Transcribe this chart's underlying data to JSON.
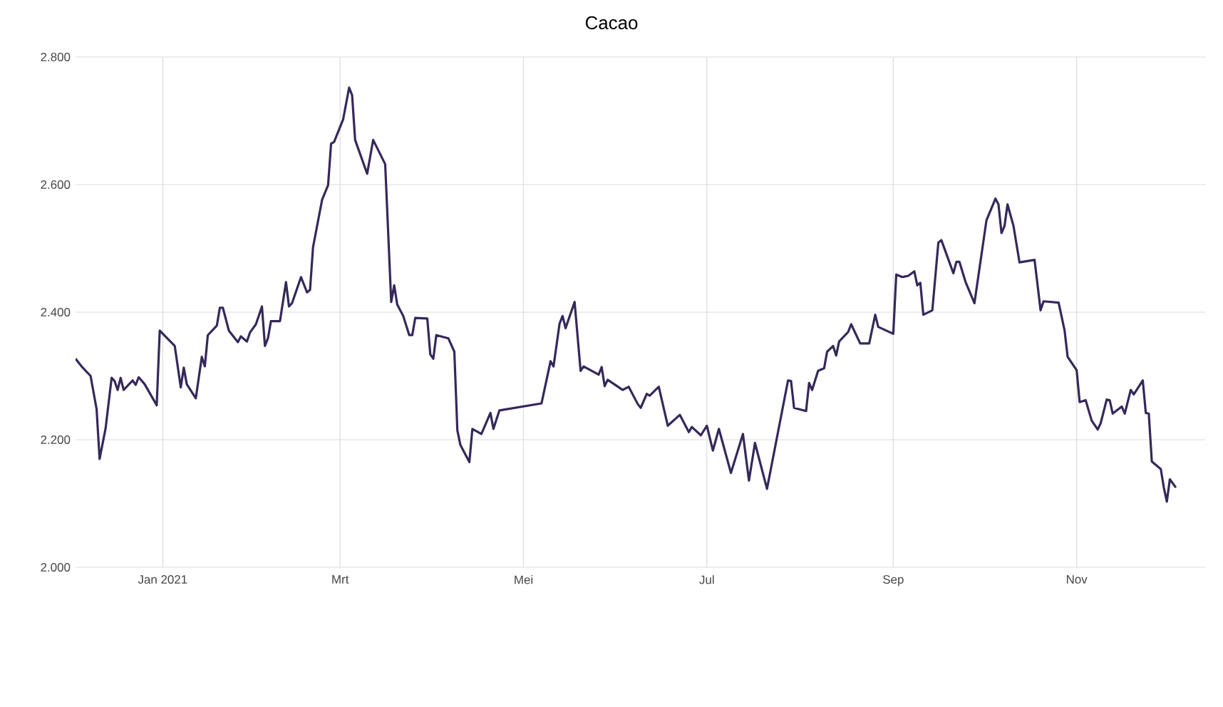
{
  "chart_data": {
    "type": "line",
    "title": "Cacao",
    "x": [
      "2020-12-03",
      "2020-12-05",
      "2020-12-08",
      "2020-12-10",
      "2020-12-11",
      "2020-12-13",
      "2020-12-15",
      "2020-12-16",
      "2020-12-17",
      "2020-12-18",
      "2020-12-19",
      "2020-12-22",
      "2020-12-23",
      "2020-12-24",
      "2020-12-26",
      "2020-12-30",
      "2020-12-31",
      "2021-01-05",
      "2021-01-07",
      "2021-01-08",
      "2021-01-09",
      "2021-01-12",
      "2021-01-14",
      "2021-01-15",
      "2021-01-16",
      "2021-01-19",
      "2021-01-20",
      "2021-01-21",
      "2021-01-23",
      "2021-01-26",
      "2021-01-27",
      "2021-01-29",
      "2021-01-30",
      "2021-02-01",
      "2021-02-03",
      "2021-02-04",
      "2021-02-05",
      "2021-02-06",
      "2021-02-09",
      "2021-02-11",
      "2021-02-12",
      "2021-02-13",
      "2021-02-16",
      "2021-02-18",
      "2021-02-19",
      "2021-02-20",
      "2021-02-23",
      "2021-02-25",
      "2021-02-26",
      "2021-02-27",
      "2021-03-02",
      "2021-03-04",
      "2021-03-05",
      "2021-03-06",
      "2021-03-10",
      "2021-03-12",
      "2021-03-16",
      "2021-03-18",
      "2021-03-19",
      "2021-03-20",
      "2021-03-22",
      "2021-03-24",
      "2021-03-25",
      "2021-03-26",
      "2021-03-30",
      "2021-03-31",
      "2021-04-01",
      "2021-04-02",
      "2021-04-06",
      "2021-04-08",
      "2021-04-09",
      "2021-04-10",
      "2021-04-13",
      "2021-04-14",
      "2021-04-17",
      "2021-04-20",
      "2021-04-21",
      "2021-04-23",
      "2021-05-07",
      "2021-05-10",
      "2021-05-11",
      "2021-05-13",
      "2021-05-14",
      "2021-05-15",
      "2021-05-18",
      "2021-05-20",
      "2021-05-21",
      "2021-05-26",
      "2021-05-27",
      "2021-05-28",
      "2021-05-29",
      "2021-06-03",
      "2021-06-05",
      "2021-06-08",
      "2021-06-09",
      "2021-06-11",
      "2021-06-12",
      "2021-06-15",
      "2021-06-18",
      "2021-06-22",
      "2021-06-25",
      "2021-06-26",
      "2021-06-29",
      "2021-07-01",
      "2021-07-03",
      "2021-07-05",
      "2021-07-09",
      "2021-07-13",
      "2021-07-15",
      "2021-07-17",
      "2021-07-21",
      "2021-07-28",
      "2021-07-29",
      "2021-07-30",
      "2021-08-03",
      "2021-08-04",
      "2021-08-05",
      "2021-08-07",
      "2021-08-09",
      "2021-08-10",
      "2021-08-12",
      "2021-08-13",
      "2021-08-14",
      "2021-08-17",
      "2021-08-18",
      "2021-08-21",
      "2021-08-24",
      "2021-08-26",
      "2021-08-27",
      "2021-09-01",
      "2021-09-02",
      "2021-09-04",
      "2021-09-06",
      "2021-09-08",
      "2021-09-09",
      "2021-09-10",
      "2021-09-11",
      "2021-09-14",
      "2021-09-16",
      "2021-09-17",
      "2021-09-21",
      "2021-09-22",
      "2021-09-23",
      "2021-09-25",
      "2021-09-28",
      "2021-10-02",
      "2021-10-05",
      "2021-10-06",
      "2021-10-07",
      "2021-10-08",
      "2021-10-09",
      "2021-10-11",
      "2021-10-13",
      "2021-10-18",
      "2021-10-20",
      "2021-10-21",
      "2021-10-26",
      "2021-10-28",
      "2021-10-29",
      "2021-11-01",
      "2021-11-02",
      "2021-11-04",
      "2021-11-06",
      "2021-11-08",
      "2021-11-09",
      "2021-11-11",
      "2021-11-12",
      "2021-11-13",
      "2021-11-16",
      "2021-11-17",
      "2021-11-19",
      "2021-11-20",
      "2021-11-23",
      "2021-11-24",
      "2021-11-25",
      "2021-11-26",
      "2021-11-29",
      "2021-11-30",
      "2021-12-01",
      "2021-12-02",
      "2021-12-04"
    ],
    "series": [
      {
        "color": "#35285a",
        "values": [
          2327,
          2315,
          2300,
          2248,
          2170,
          2218,
          2297,
          2292,
          2278,
          2297,
          2278,
          2293,
          2286,
          2298,
          2287,
          2254,
          2371,
          2347,
          2282,
          2313,
          2287,
          2265,
          2330,
          2315,
          2364,
          2379,
          2407,
          2407,
          2371,
          2353,
          2362,
          2354,
          2368,
          2381,
          2409,
          2347,
          2359,
          2386,
          2386,
          2447,
          2409,
          2414,
          2455,
          2431,
          2435,
          2502,
          2576,
          2599,
          2664,
          2667,
          2702,
          2752,
          2740,
          2670,
          2617,
          2670,
          2632,
          2416,
          2442,
          2412,
          2394,
          2364,
          2364,
          2391,
          2390,
          2334,
          2327,
          2364,
          2359,
          2338,
          2215,
          2192,
          2165,
          2217,
          2209,
          2242,
          2217,
          2246,
          2257,
          2323,
          2315,
          2382,
          2394,
          2375,
          2416,
          2308,
          2315,
          2302,
          2314,
          2284,
          2294,
          2278,
          2283,
          2256,
          2250,
          2272,
          2269,
          2283,
          2222,
          2239,
          2212,
          2220,
          2207,
          2222,
          2183,
          2217,
          2148,
          2209,
          2136,
          2195,
          2123,
          2293,
          2292,
          2250,
          2245,
          2289,
          2278,
          2308,
          2312,
          2338,
          2347,
          2332,
          2354,
          2369,
          2381,
          2351,
          2351,
          2396,
          2377,
          2366,
          2459,
          2455,
          2457,
          2464,
          2442,
          2446,
          2396,
          2403,
          2509,
          2513,
          2461,
          2479,
          2479,
          2448,
          2414,
          2544,
          2578,
          2569,
          2524,
          2535,
          2569,
          2535,
          2478,
          2482,
          2403,
          2417,
          2415,
          2371,
          2330,
          2309,
          2259,
          2262,
          2230,
          2216,
          2226,
          2263,
          2262,
          2241,
          2252,
          2241,
          2278,
          2271,
          2293,
          2242,
          2241,
          2166,
          2154,
          2125,
          2103,
          2138,
          2125
        ]
      }
    ],
    "xlim": [
      "2020-12-03",
      "2021-12-14"
    ],
    "xticks": [
      {
        "value": "2021-01-01",
        "label": "Jan 2021"
      },
      {
        "value": "2021-03-01",
        "label": "Mrt"
      },
      {
        "value": "2021-05-01",
        "label": "Mei"
      },
      {
        "value": "2021-07-01",
        "label": "Jul"
      },
      {
        "value": "2021-09-01",
        "label": "Sep"
      },
      {
        "value": "2021-11-01",
        "label": "Nov"
      }
    ],
    "ylim": [
      2000,
      2800
    ],
    "yticks": [
      {
        "value": 2000,
        "label": "2.000"
      },
      {
        "value": 2200,
        "label": "2.200"
      },
      {
        "value": 2400,
        "label": "2.400"
      },
      {
        "value": 2600,
        "label": "2.600"
      },
      {
        "value": 2800,
        "label": "2.800"
      }
    ],
    "grid": true,
    "line_style": "solid"
  }
}
